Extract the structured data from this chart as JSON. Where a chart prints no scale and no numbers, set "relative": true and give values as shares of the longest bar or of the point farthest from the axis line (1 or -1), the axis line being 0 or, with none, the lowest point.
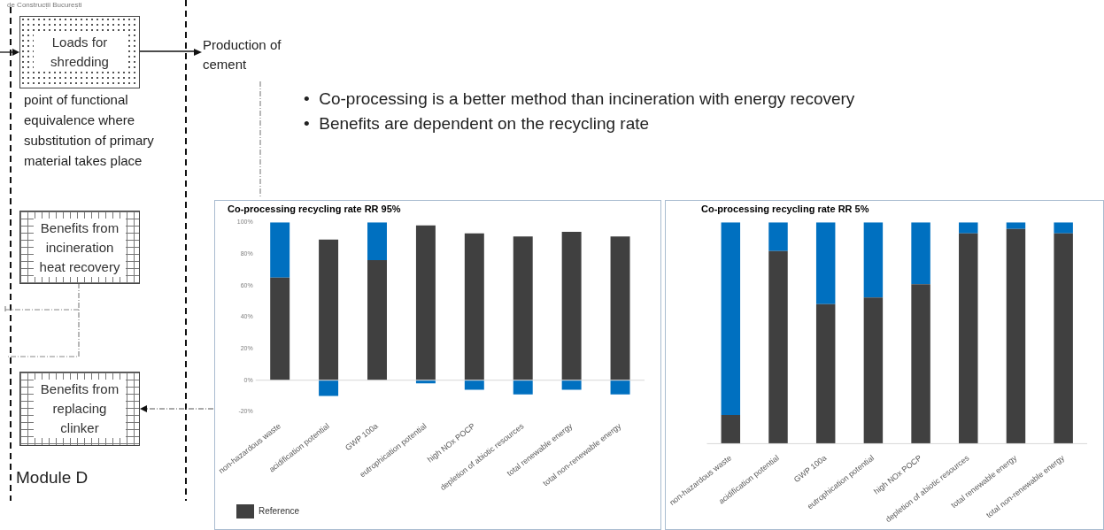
{
  "chart_data": [
    {
      "type": "other",
      "annotations": [
        "de Construcții București",
        "Loads for shredding",
        "Production of cement",
        "point of functional equivalence where substitution of primary material takes place",
        "Benefits from incineration heat recovery",
        "Benefits from replacing clinker",
        "Module D",
        "•  Co-processing is a better method than incineration with energy recovery",
        "•  Benefits are dependent on the recycling rate"
      ]
    },
    {
      "type": "bar",
      "title": "Co-processing recycling rate RR 95%",
      "stacked": true,
      "categories": [
        "non-hazardous waste",
        "acidification potential",
        "GWP 100a",
        "eutrophication potential",
        "high NOx POCP",
        "depletion of abiotic resources",
        "total renewable energy",
        "total non-renewable energy"
      ],
      "series": [
        {
          "name": "Reference",
          "color": "#404040",
          "values": [
            65,
            89,
            76,
            98,
            93,
            91,
            94,
            91
          ]
        },
        {
          "color": "#0070c0",
          "values": [
            35,
            -10,
            24,
            -2,
            -6,
            -9,
            -6,
            -9
          ]
        }
      ],
      "ylim": [
        -20,
        100
      ],
      "yticks": [
        {
          "value": -20,
          "label": "-20%"
        },
        {
          "value": 0,
          "label": "0%"
        },
        {
          "value": 20,
          "label": "20%"
        },
        {
          "value": 40,
          "label": "40%"
        },
        {
          "value": 60,
          "label": "60%"
        },
        {
          "value": 80,
          "label": "80%"
        },
        {
          "value": 100,
          "label": "100%"
        }
      ],
      "legend": "bottom"
    },
    {
      "type": "bar",
      "title": "Co-processing recycling rate RR 5%",
      "stacked": true,
      "relative": true,
      "categories": [
        "non-hazardous waste",
        "acidification potential",
        "GWP 100a",
        "eutrophication potential",
        "high NOx POCP",
        "depletion of abiotic resources",
        "total renewable energy",
        "total non-renewable energy"
      ],
      "series": [
        {
          "color": "#404040",
          "values": [
            0.13,
            0.87,
            0.63,
            0.66,
            0.72,
            0.95,
            0.97,
            0.95
          ]
        },
        {
          "color": "#0070c0",
          "values": [
            0.87,
            0.13,
            0.37,
            0.34,
            0.28,
            0.05,
            0.03,
            0.05
          ]
        }
      ]
    }
  ]
}
